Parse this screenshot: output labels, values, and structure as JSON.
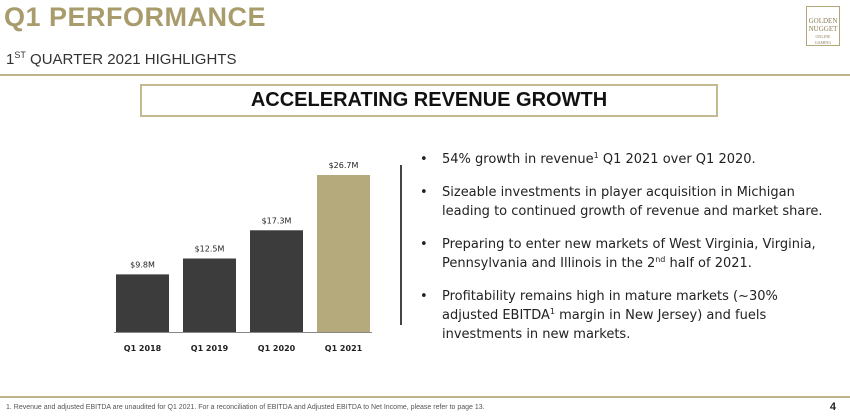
{
  "header": {
    "title": "Q1 PERFORMANCE",
    "subtitle_prefix": "1",
    "subtitle_sup": "ST",
    "subtitle_rest": " QUARTER 2021 HIGHLIGHTS"
  },
  "logo": {
    "line1": "GOLDEN",
    "line2": "NUGGET",
    "line3": "ONLINE GAMING"
  },
  "banner": {
    "text": "ACCELERATING REVENUE GROWTH"
  },
  "chart_data": {
    "type": "bar",
    "categories": [
      "Q1 2018",
      "Q1 2019",
      "Q1 2020",
      "Q1 2021"
    ],
    "values": [
      9.8,
      12.5,
      17.3,
      26.7
    ],
    "data_labels": [
      "$9.8M",
      "$12.5M",
      "$17.3M",
      "$26.7M"
    ],
    "title": "",
    "xlabel": "",
    "ylabel": "",
    "ylim": [
      0,
      26.7
    ],
    "colors": [
      "#3c3c3c",
      "#3c3c3c",
      "#3c3c3c",
      "#b5aa7b"
    ]
  },
  "bullets": [
    {
      "parts": [
        {
          "text": "54% growth in revenue"
        },
        {
          "text": "1",
          "sup": true
        },
        {
          "text": " Q1 2021 over Q1 2020."
        }
      ]
    },
    {
      "parts": [
        {
          "text": "Sizeable investments in player acquisition in Michigan leading to continued growth of revenue and market share."
        }
      ]
    },
    {
      "parts": [
        {
          "text": "Preparing to enter new markets of West Virginia, Virginia, Pennsylvania and Illinois in the 2"
        },
        {
          "text": "nd",
          "sup": true
        },
        {
          "text": " half of 2021."
        }
      ]
    },
    {
      "parts": [
        {
          "text": "Profitability remains high in mature markets (~30% adjusted EBITDA"
        },
        {
          "text": "1",
          "sup": true
        },
        {
          "text": " margin in New Jersey) and fuels investments in new markets."
        }
      ]
    }
  ],
  "footer": {
    "footnote": "1. Revenue and adjusted EBITDA are unaudited for Q1 2021. For a reconciliation of EBITDA and Adjusted EBITDA to Net Income, please refer to page 13.",
    "page_number": "4"
  }
}
